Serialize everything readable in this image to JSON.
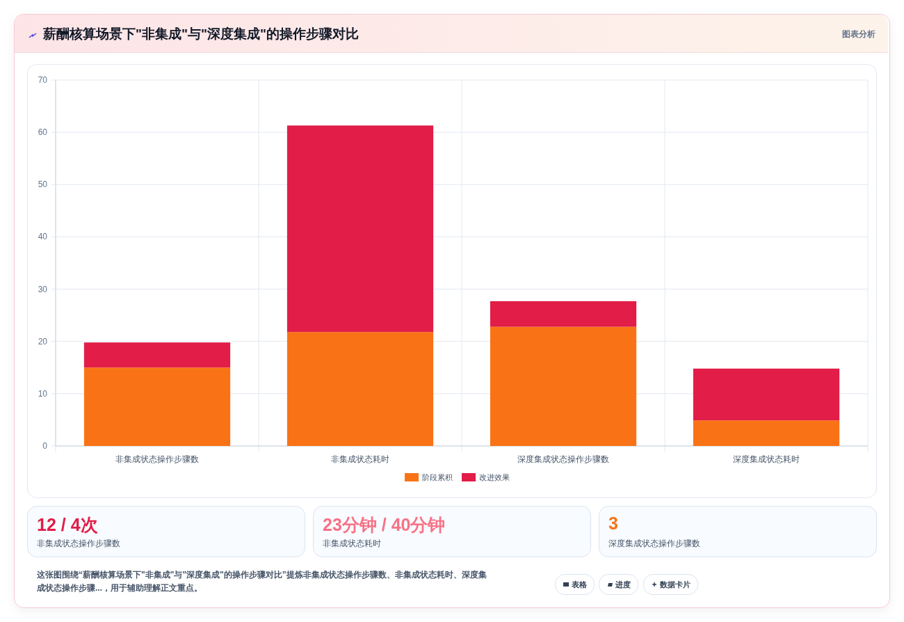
{
  "chart_data": {
    "type": "bar",
    "title": "薪酬核算场景下\"非集成\"与\"深度集成\"的操作步骤对比",
    "categories": [
      "非集成状态操作步骤数",
      "非集成状态耗时",
      "深度集成状态操作步骤数",
      "深度集成状态耗时"
    ],
    "series": [
      {
        "name": "阶段累积",
        "color": "#f97316",
        "values": [
          15,
          21.8,
          22.8,
          4.9
        ]
      },
      {
        "name": "改进效果",
        "color": "#e11d48",
        "values": [
          4.8,
          39.5,
          4.9,
          9.9
        ]
      }
    ],
    "stacked": true,
    "ylim": [
      0,
      70
    ],
    "yticks": [
      0,
      10,
      20,
      30,
      40,
      50,
      60,
      70
    ],
    "grid": true,
    "legend": "bottom",
    "annotations": [
      "图表分析",
      "12 / 4次",
      "非集成状态操作步骤数",
      "23分钟 / 40分钟",
      "非集成状态耗时",
      "3",
      "深度集成状态操作步骤数",
      "这张图围绕“薪酬核算场景下\"非集成\"与\"深度集成\"的操作步骤对比”提炼非集成状态操作步骤数、非集成状态耗时、深度集成状态操作步骤...，用于辅助理解正文重点。",
      "表格",
      "进度",
      "数据卡片"
    ]
  }
}
